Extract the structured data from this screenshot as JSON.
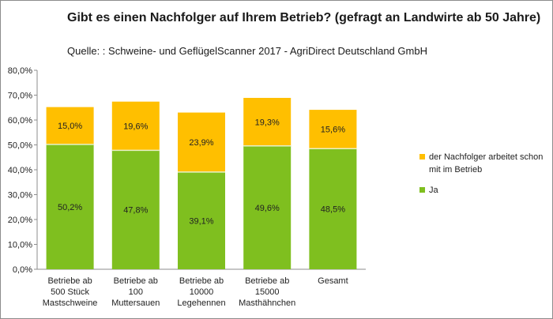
{
  "title": "Gibt es einen Nachfolger auf Ihrem Betrieb? (gefragt an Landwirte ab 50 Jahre)",
  "subtitle": "Quelle: : Schweine- und GeflügelScanner 2017 - AgriDirect Deutschland GmbH",
  "chart_data": {
    "type": "bar",
    "stacked": true,
    "categories": [
      [
        "Betriebe ab",
        "500 Stück",
        "Mastschweine"
      ],
      [
        "Betriebe ab",
        "100",
        "Muttersauen"
      ],
      [
        "Betriebe ab",
        "10000",
        "Legehennen"
      ],
      [
        "Betriebe ab",
        "15000",
        "Masthähnchen"
      ],
      [
        "Gesamt"
      ]
    ],
    "series": [
      {
        "name": "Ja",
        "color": "#7fbf1f",
        "values": [
          50.2,
          47.8,
          39.1,
          49.6,
          48.5
        ],
        "labels": [
          "50,2%",
          "47,8%",
          "39,1%",
          "49,6%",
          "48,5%"
        ]
      },
      {
        "name": "der Nachfolger arbeitet schon mit im Betrieb",
        "color": "#ffbf00",
        "values": [
          15.0,
          19.6,
          23.9,
          19.3,
          15.6
        ],
        "labels": [
          "15,0%",
          "19,6%",
          "23,9%",
          "19,3%",
          "15,6%"
        ]
      }
    ],
    "ylim": [
      0,
      80
    ],
    "yticks": [
      "0,0%",
      "10,0%",
      "20,0%",
      "30,0%",
      "40,0%",
      "50,0%",
      "60,0%",
      "70,0%",
      "80,0%"
    ],
    "legend_position": "right",
    "grid": false
  }
}
